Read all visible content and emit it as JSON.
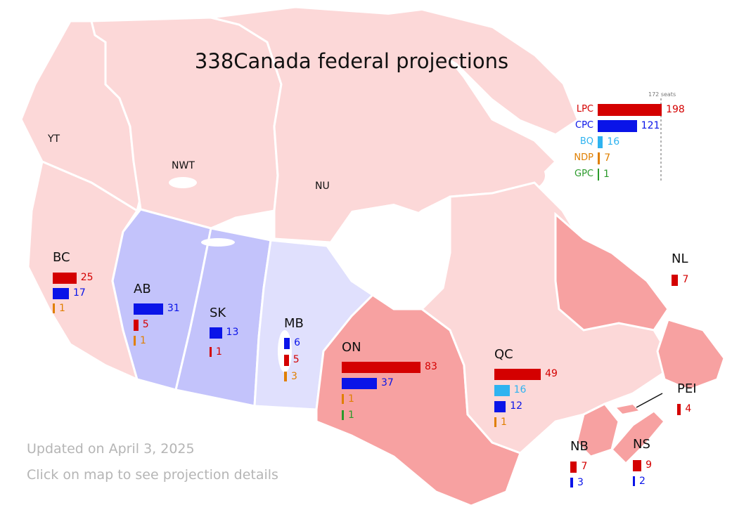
{
  "title": "338Canada federal projections",
  "colors": {
    "LPC": "#d40000",
    "CPC": "#0a14e8",
    "BQ": "#2fb3f0",
    "NDP": "#e07f00",
    "GPC": "#2b9a2b",
    "liberal_fill_strong": "#f7a1a1",
    "liberal_fill_light": "#fcd8d8",
    "conservative_fill_strong": "#c3c3fb",
    "conservative_fill_light": "#e0e0fd",
    "water": "#ffffff"
  },
  "territories": [
    {
      "name": "YT"
    },
    {
      "name": "NWT"
    },
    {
      "name": "NU"
    }
  ],
  "legend": {
    "majority_label": "172 seats",
    "majority_value": 172,
    "max_value": 198,
    "parties": [
      {
        "party": "LPC",
        "seats": "198"
      },
      {
        "party": "CPC",
        "seats": "121"
      },
      {
        "party": "BQ",
        "seats": "16"
      },
      {
        "party": "NDP",
        "seats": "7"
      },
      {
        "party": "GPC",
        "seats": "1"
      }
    ]
  },
  "provinces": {
    "BC": {
      "name": "BC",
      "rows": [
        {
          "party": "LPC",
          "seats": "25"
        },
        {
          "party": "CPC",
          "seats": "17"
        },
        {
          "party": "NDP",
          "seats": "1"
        }
      ]
    },
    "AB": {
      "name": "AB",
      "rows": [
        {
          "party": "CPC",
          "seats": "31"
        },
        {
          "party": "LPC",
          "seats": "5"
        },
        {
          "party": "NDP",
          "seats": "1"
        }
      ]
    },
    "SK": {
      "name": "SK",
      "rows": [
        {
          "party": "CPC",
          "seats": "13"
        },
        {
          "party": "LPC",
          "seats": "1"
        }
      ]
    },
    "MB": {
      "name": "MB",
      "rows": [
        {
          "party": "CPC",
          "seats": "6"
        },
        {
          "party": "LPC",
          "seats": "5"
        },
        {
          "party": "NDP",
          "seats": "3"
        }
      ]
    },
    "ON": {
      "name": "ON",
      "rows": [
        {
          "party": "LPC",
          "seats": "83"
        },
        {
          "party": "CPC",
          "seats": "37"
        },
        {
          "party": "NDP",
          "seats": "1"
        },
        {
          "party": "GPC",
          "seats": "1"
        }
      ]
    },
    "QC": {
      "name": "QC",
      "rows": [
        {
          "party": "LPC",
          "seats": "49"
        },
        {
          "party": "BQ",
          "seats": "16"
        },
        {
          "party": "CPC",
          "seats": "12"
        },
        {
          "party": "NDP",
          "seats": "1"
        }
      ]
    },
    "NL": {
      "name": "NL",
      "rows": [
        {
          "party": "LPC",
          "seats": "7"
        }
      ]
    },
    "PEI": {
      "name": "PEI",
      "rows": [
        {
          "party": "LPC",
          "seats": "4"
        }
      ]
    },
    "NB": {
      "name": "NB",
      "rows": [
        {
          "party": "LPC",
          "seats": "7"
        },
        {
          "party": "CPC",
          "seats": "3"
        }
      ]
    },
    "NS": {
      "name": "NS",
      "rows": [
        {
          "party": "LPC",
          "seats": "9"
        },
        {
          "party": "CPC",
          "seats": "2"
        }
      ]
    }
  },
  "footer": {
    "updated": "Updated on April 3, 2025",
    "hint": "Click on map to see projection details"
  }
}
